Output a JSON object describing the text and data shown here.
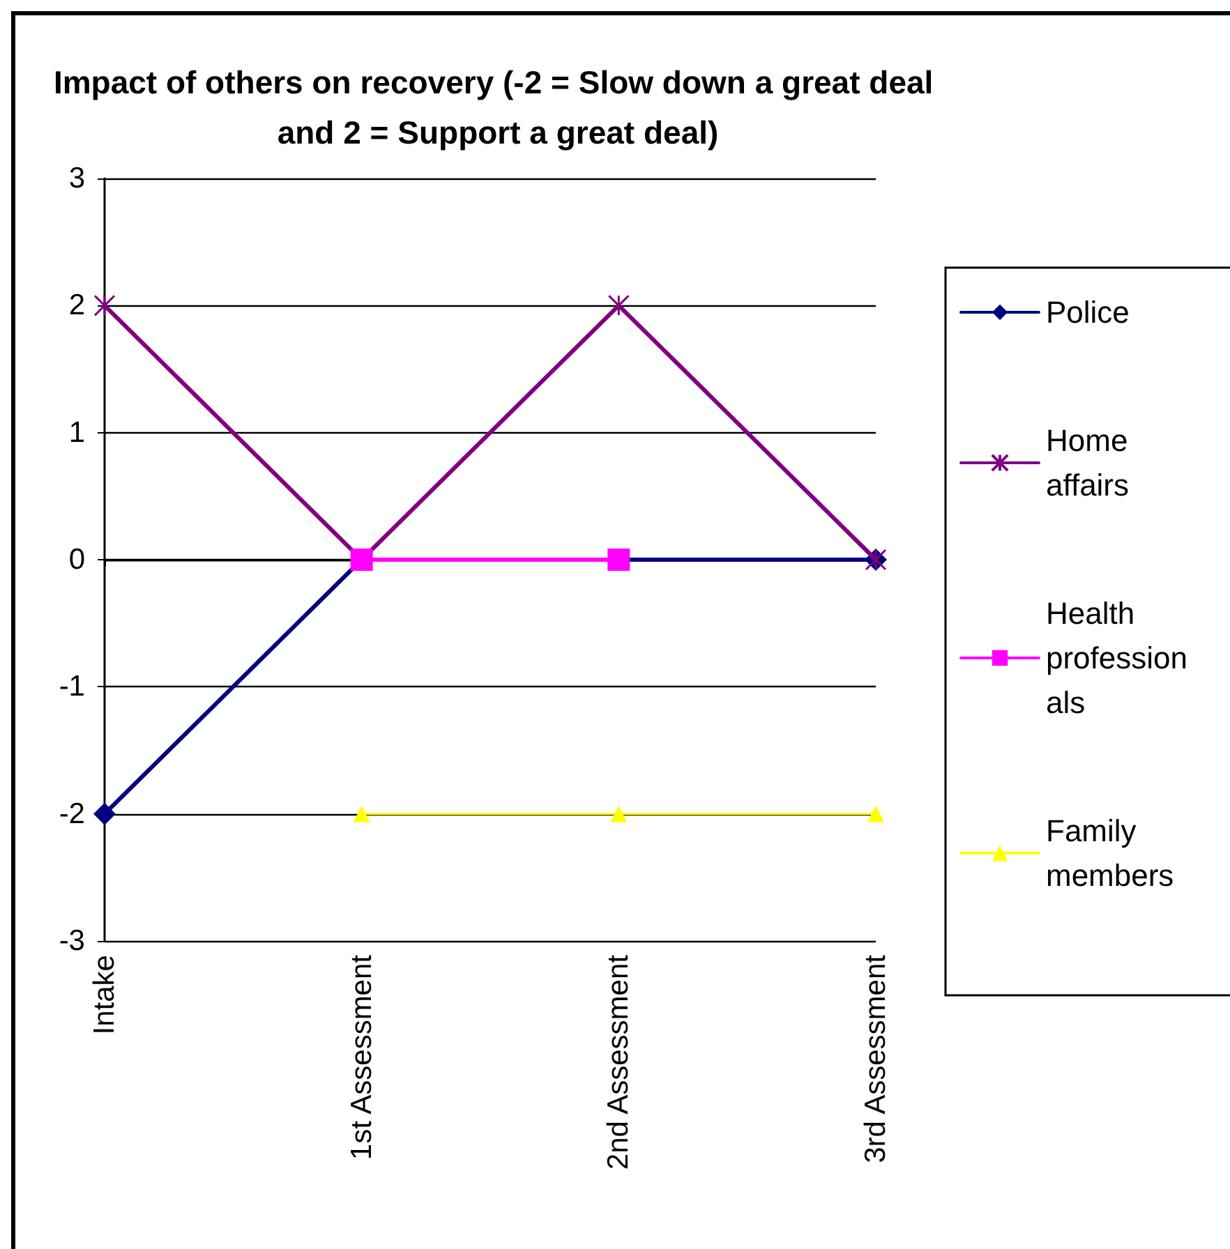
{
  "chart_data": {
    "type": "line",
    "title": "Impact of others on recovery (-2 = Slow down a great deal and 2 = Support a great deal)",
    "categories": [
      "Intake",
      "1st Assessment",
      "2nd Assessment",
      "3rd Assessment"
    ],
    "series": [
      {
        "name": "Police",
        "color": "#000080",
        "marker": "diamond",
        "values": [
          -2,
          0,
          0,
          0
        ]
      },
      {
        "name": "Home affairs",
        "color": "#800080",
        "marker": "cross",
        "values": [
          2,
          0,
          2,
          0
        ]
      },
      {
        "name": "Health professionals",
        "color": "#ff00ff",
        "marker": "square",
        "values": [
          null,
          0,
          0,
          null
        ]
      },
      {
        "name": "Family members",
        "color": "#ffff00",
        "marker": "triangle",
        "values": [
          null,
          -2,
          -2,
          -2
        ]
      }
    ],
    "ylim": [
      -3,
      3
    ],
    "yticks": [
      -3,
      -2,
      -1,
      0,
      1,
      2,
      3
    ],
    "grid": "y",
    "legend": "right"
  }
}
